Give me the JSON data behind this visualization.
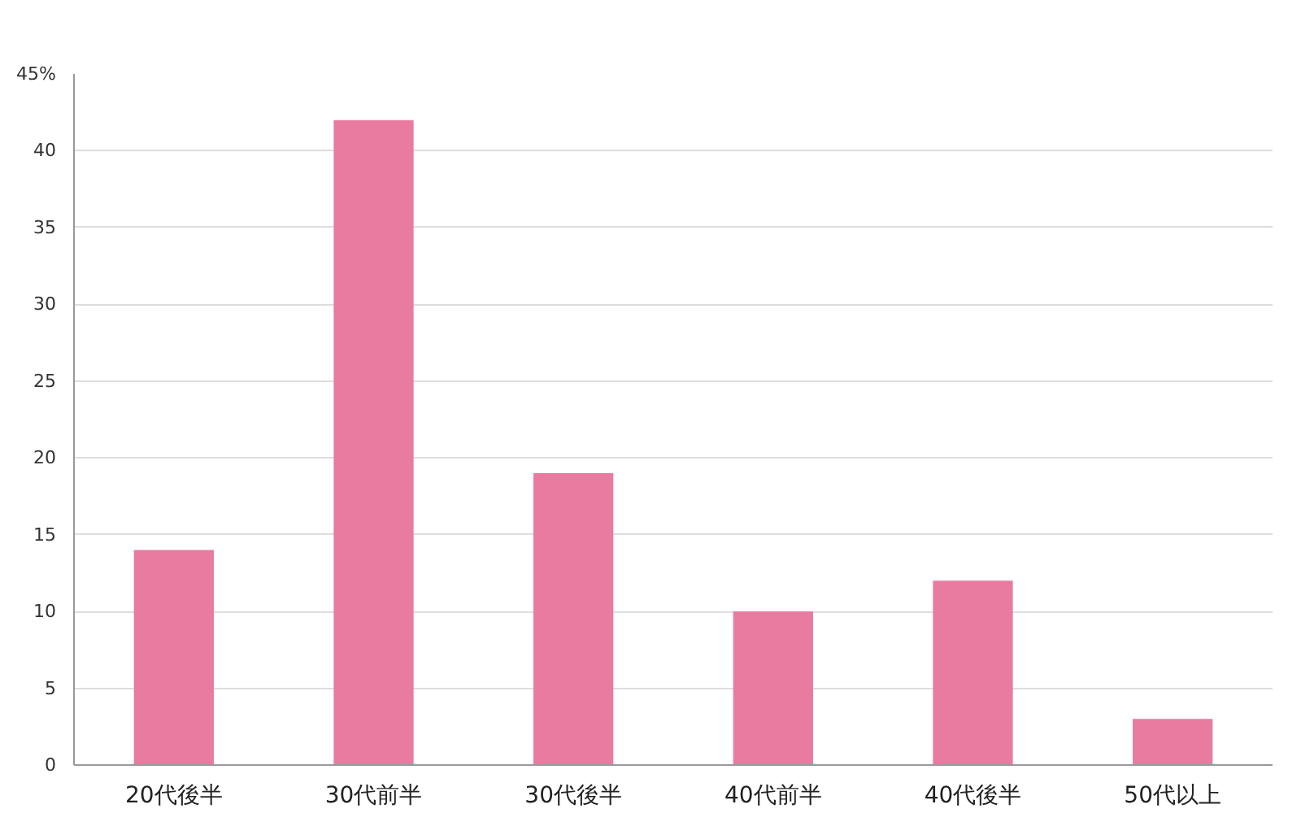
{
  "chart_data": {
    "type": "bar",
    "categories": [
      "20代後半",
      "30代前半",
      "30代後半",
      "40代前半",
      "40代後半",
      "50代以上"
    ],
    "values": [
      14,
      42,
      19,
      10,
      12,
      3
    ],
    "color": "#e97aa0",
    "ylim": [
      0,
      45
    ],
    "yticks": [
      0,
      5,
      10,
      15,
      20,
      25,
      30,
      35,
      40,
      {
        "value": 45,
        "label": "45%"
      }
    ],
    "grid": "y"
  }
}
